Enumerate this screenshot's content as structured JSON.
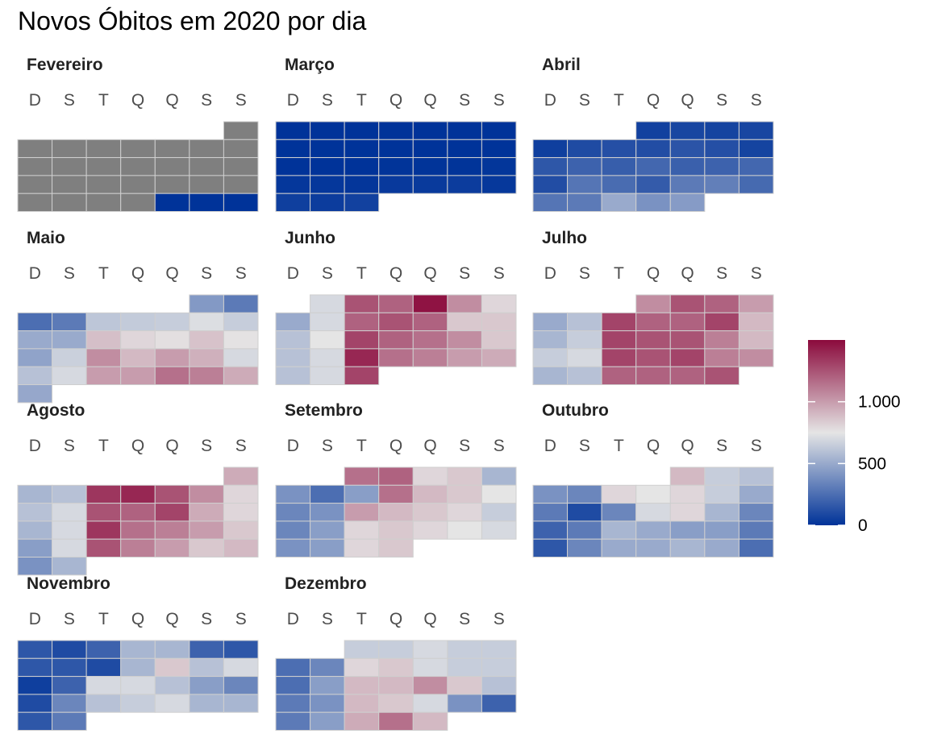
{
  "title": "Novos Óbitos em 2020 por dia",
  "chart_data": {
    "type": "heatmap",
    "title": "Novos Óbitos em 2020 por dia",
    "weekday_labels": [
      "D",
      "S",
      "T",
      "Q",
      "Q",
      "S",
      "S"
    ],
    "colorscale": {
      "min": 0,
      "mid": 750,
      "max": 1500,
      "low_color": "#003399",
      "mid_color": "#e5e5e5",
      "high_color": "#8b0a3c",
      "missing_color": "#7f7f7f"
    },
    "legend": {
      "position": "right",
      "ticks": [
        0,
        500,
        1000
      ],
      "tick_labels": [
        "0",
        "500",
        "1.000"
      ]
    },
    "months": [
      {
        "name": "Fevereiro",
        "start_weekday": 6,
        "values": [
          null,
          null,
          null,
          null,
          null,
          null,
          null,
          null,
          null,
          null,
          null,
          null,
          null,
          null,
          null,
          null,
          null,
          null,
          null,
          null,
          null,
          null,
          null,
          null,
          null,
          null,
          0,
          0,
          0
        ]
      },
      {
        "name": "Março",
        "start_weekday": 0,
        "values": [
          0,
          0,
          0,
          0,
          0,
          0,
          0,
          0,
          0,
          0,
          0,
          0,
          0,
          0,
          0,
          0,
          1,
          3,
          4,
          4,
          11,
          16,
          18,
          12,
          25,
          31,
          38,
          20,
          50,
          40,
          60
        ]
      },
      {
        "name": "Abril",
        "start_weekday": 3,
        "values": [
          60,
          80,
          70,
          80,
          50,
          100,
          120,
          110,
          140,
          120,
          70,
          150,
          200,
          180,
          220,
          190,
          200,
          220,
          110,
          280,
          240,
          170,
          300,
          320,
          230,
          280,
          300,
          500,
          400,
          440
        ]
      },
      {
        "name": "Maio",
        "start_weekday": 5,
        "values": [
          430,
          300,
          250,
          300,
          620,
          640,
          650,
          720,
          650,
          500,
          500,
          880,
          800,
          770,
          870,
          760,
          470,
          660,
          1050,
          900,
          1000,
          930,
          700,
          600,
          700,
          1000,
          1000,
          1150,
          1100,
          950,
          490
        ]
      },
      {
        "name": "Junho",
        "start_weekday": 1,
        "values": [
          700,
          1250,
          1200,
          1470,
          1050,
          800,
          500,
          700,
          1200,
          1250,
          1200,
          850,
          850,
          600,
          750,
          1300,
          1200,
          1150,
          1050,
          850,
          600,
          700,
          1400,
          1150,
          1100,
          1000,
          950,
          600,
          700,
          1300
        ]
      },
      {
        "name": "Julho",
        "start_weekday": 3,
        "values": [
          1050,
          1250,
          1200,
          1000,
          500,
          600,
          1300,
          1200,
          1200,
          1300,
          900,
          550,
          650,
          1300,
          1250,
          1250,
          1100,
          900,
          650,
          700,
          1300,
          1250,
          1300,
          1100,
          1050,
          550,
          600,
          1200,
          1200,
          1200,
          1250
        ]
      },
      {
        "name": "Agosto",
        "start_weekday": 6,
        "values": [
          950,
          550,
          600,
          1350,
          1400,
          1250,
          1050,
          800,
          600,
          700,
          1250,
          1200,
          1300,
          950,
          800,
          550,
          700,
          1350,
          1150,
          1100,
          1000,
          850,
          450,
          700,
          1250,
          1100,
          1000,
          850,
          900,
          400,
          550
        ]
      },
      {
        "name": "Setembro",
        "start_weekday": 2,
        "values": [
          1150,
          1200,
          800,
          850,
          550,
          400,
          250,
          450,
          1150,
          900,
          850,
          750,
          350,
          400,
          1000,
          900,
          850,
          800,
          650,
          350,
          450,
          800,
          850,
          800,
          750,
          700,
          400,
          450,
          800,
          850
        ]
      },
      {
        "name": "Outubro",
        "start_weekday": 4,
        "values": [
          900,
          650,
          600,
          400,
          350,
          800,
          750,
          800,
          650,
          500,
          300,
          100,
          350,
          700,
          800,
          550,
          350,
          200,
          300,
          550,
          500,
          450,
          450,
          300,
          150,
          350,
          500,
          500,
          550,
          500,
          250
        ]
      },
      {
        "name": "Novembro",
        "start_weekday": 0,
        "values": [
          150,
          100,
          200,
          550,
          550,
          200,
          150,
          150,
          150,
          100,
          550,
          850,
          600,
          700,
          50,
          200,
          700,
          700,
          600,
          450,
          350,
          100,
          350,
          600,
          650,
          700,
          550,
          550,
          150,
          300
        ]
      },
      {
        "name": "Dezembro",
        "start_weekday": 2,
        "values": [
          650,
          650,
          700,
          650,
          650,
          250,
          350,
          800,
          850,
          700,
          650,
          650,
          250,
          450,
          900,
          900,
          1050,
          850,
          600,
          300,
          400,
          900,
          850,
          700,
          400,
          200,
          300,
          450,
          950,
          1150,
          900
        ]
      }
    ]
  }
}
